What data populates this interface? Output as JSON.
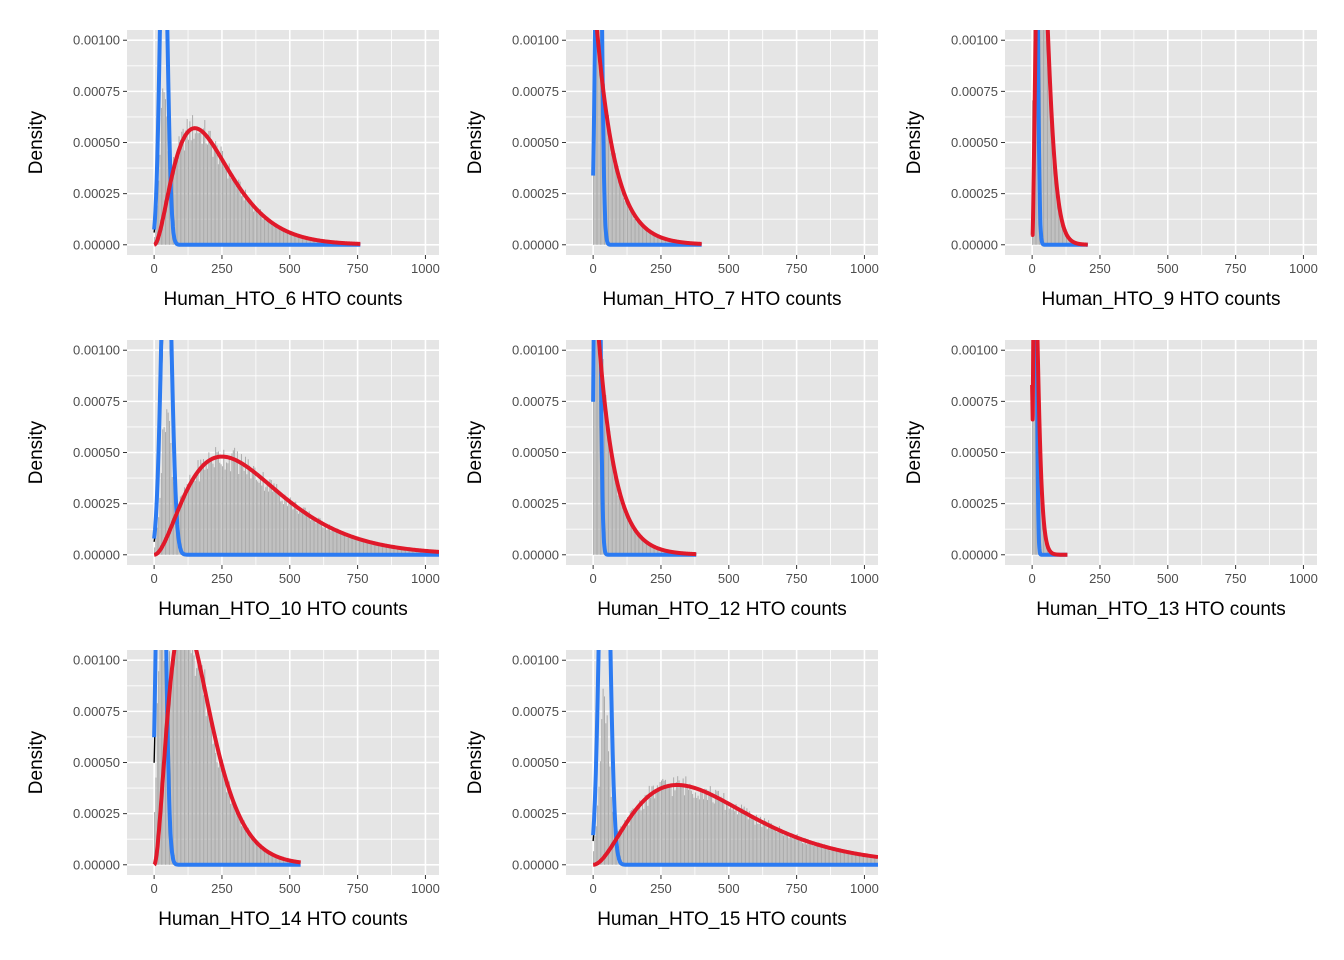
{
  "colors": {
    "panel_bg": "#e5e5e5",
    "grid": "#ffffff",
    "histogram": "#a9a9a9",
    "negative_fit": "#2c7bf2",
    "positive_fit": "#e0192a",
    "mixture_fit": "#000000",
    "tick_text": "#4d4d4d"
  },
  "chart_data": [
    {
      "type": "bar",
      "overlay": "line",
      "xlabel": "Human_HTO_6 HTO counts",
      "ylabel": "Density",
      "xlim": [
        -100,
        1050
      ],
      "ylim": [
        -5e-05,
        0.00105
      ],
      "xticks": [
        0,
        250,
        500,
        750,
        1000
      ],
      "xtick_labels": [
        "0",
        "250",
        "500",
        "750",
        "1000"
      ],
      "yticks": [
        0,
        0.00025,
        0.0005,
        0.00075,
        0.001
      ],
      "ytick_labels": [
        "0.00000",
        "0.00025",
        "0.00050",
        "0.00075",
        "0.00100"
      ],
      "data_max_x": 760,
      "negative": {
        "peak_x": 35,
        "peak_y": 0.0017,
        "width": 14
      },
      "positive": {
        "peak_x": 150,
        "peak_y": 0.00057,
        "shape": 3.0,
        "end_y": 2e-05
      }
    },
    {
      "type": "bar",
      "overlay": "line",
      "xlabel": "Human_HTO_7 HTO counts",
      "ylabel": "Density",
      "xlim": [
        -100,
        1050
      ],
      "ylim": [
        -5e-05,
        0.00105
      ],
      "xticks": [
        0,
        250,
        500,
        750,
        1000
      ],
      "xtick_labels": [
        "0",
        "250",
        "500",
        "750",
        "1000"
      ],
      "yticks": [
        0,
        0.00025,
        0.0005,
        0.00075,
        0.001
      ],
      "ytick_labels": [
        "0.00000",
        "0.00025",
        "0.00050",
        "0.00075",
        "0.00100"
      ],
      "data_max_x": 400,
      "negative": {
        "peak_x": 20,
        "peak_y": 0.0025,
        "width": 10
      },
      "positive": {
        "peak_x": 5,
        "peak_y": 0.0012,
        "decay": 70,
        "end_y": 1e-05
      }
    },
    {
      "type": "bar",
      "overlay": "line",
      "xlabel": "Human_HTO_9 HTO counts",
      "ylabel": "Density",
      "xlim": [
        -100,
        1050
      ],
      "ylim": [
        -5e-05,
        0.00105
      ],
      "xticks": [
        0,
        250,
        500,
        750,
        1000
      ],
      "xtick_labels": [
        "0",
        "250",
        "500",
        "750",
        "1000"
      ],
      "yticks": [
        0,
        0.00025,
        0.0005,
        0.00075,
        0.001
      ],
      "ytick_labels": [
        "0.00000",
        "0.00025",
        "0.00050",
        "0.00075",
        "0.00100"
      ],
      "data_max_x": 205,
      "negative": {
        "peak_x": 10,
        "peak_y": 0.003,
        "width": 8
      },
      "positive": {
        "peak_x": 30,
        "peak_y": 0.0018,
        "shape": 3.0,
        "start_y": 5e-05,
        "end_y": 3e-05
      }
    },
    {
      "type": "bar",
      "overlay": "line",
      "xlabel": "Human_HTO_10 HTO counts",
      "ylabel": "Density",
      "xlim": [
        -100,
        1050
      ],
      "ylim": [
        -5e-05,
        0.00105
      ],
      "xticks": [
        0,
        250,
        500,
        750,
        1000
      ],
      "xtick_labels": [
        "0",
        "250",
        "500",
        "750",
        "1000"
      ],
      "yticks": [
        0,
        0.00025,
        0.0005,
        0.00075,
        0.001
      ],
      "ytick_labels": [
        "0.00000",
        "0.00025",
        "0.00050",
        "0.00075",
        "0.00100"
      ],
      "data_max_x": 1050,
      "negative": {
        "peak_x": 45,
        "peak_y": 0.0018,
        "width": 18
      },
      "positive": {
        "peak_x": 250,
        "peak_y": 0.00048,
        "shape": 3.0,
        "end_y": 3e-05
      }
    },
    {
      "type": "bar",
      "overlay": "line",
      "xlabel": "Human_HTO_12 HTO counts",
      "ylabel": "Density",
      "xlim": [
        -100,
        1050
      ],
      "ylim": [
        -5e-05,
        0.00105
      ],
      "xticks": [
        0,
        250,
        500,
        750,
        1000
      ],
      "xtick_labels": [
        "0",
        "250",
        "500",
        "750",
        "1000"
      ],
      "yticks": [
        0,
        0.00025,
        0.0005,
        0.00075,
        0.001
      ],
      "ytick_labels": [
        "0.00000",
        "0.00025",
        "0.00050",
        "0.00075",
        "0.00100"
      ],
      "data_max_x": 380,
      "negative": {
        "peak_x": 15,
        "peak_y": 0.003,
        "width": 9
      },
      "positive": {
        "peak_x": 8,
        "peak_y": 0.0013,
        "decay": 62,
        "end_y": 1e-05
      }
    },
    {
      "type": "bar",
      "overlay": "line",
      "xlabel": "Human_HTO_13 HTO counts",
      "ylabel": "Density",
      "xlim": [
        -100,
        1050
      ],
      "ylim": [
        -5e-05,
        0.00105
      ],
      "xticks": [
        0,
        250,
        500,
        750,
        1000
      ],
      "xtick_labels": [
        "0",
        "250",
        "500",
        "750",
        "1000"
      ],
      "yticks": [
        0,
        0.00025,
        0.0005,
        0.00075,
        0.001
      ],
      "ytick_labels": [
        "0.00000",
        "0.00025",
        "0.00050",
        "0.00075",
        "0.00100"
      ],
      "data_max_x": 130,
      "negative": {
        "peak_x": 8,
        "peak_y": 0.004,
        "width": 6
      },
      "positive": {
        "peak_x": 10,
        "peak_y": 0.0015,
        "shape": 2.2,
        "start_y": 0.00083,
        "end_y": 2e-05
      }
    },
    {
      "type": "bar",
      "overlay": "line",
      "xlabel": "Human_HTO_14 HTO counts",
      "ylabel": "Density",
      "xlim": [
        -100,
        1050
      ],
      "ylim": [
        -5e-05,
        0.00105
      ],
      "xticks": [
        0,
        250,
        500,
        750,
        1000
      ],
      "xtick_labels": [
        "0",
        "250",
        "500",
        "750",
        "1000"
      ],
      "yticks": [
        0,
        0.00025,
        0.0005,
        0.00075,
        0.001
      ],
      "ytick_labels": [
        "0.00000",
        "0.00025",
        "0.00050",
        "0.00075",
        "0.00100"
      ],
      "data_max_x": 540,
      "negative": {
        "peak_x": 25,
        "peak_y": 0.0025,
        "width": 15
      },
      "positive": {
        "peak_x": 110,
        "peak_y": 0.0012,
        "shape": 3.0,
        "end_y": 4e-05
      }
    },
    {
      "type": "bar",
      "overlay": "line",
      "xlabel": "Human_HTO_15 HTO counts",
      "ylabel": "Density",
      "xlim": [
        -100,
        1050
      ],
      "ylim": [
        -5e-05,
        0.00105
      ],
      "xticks": [
        0,
        250,
        500,
        750,
        1000
      ],
      "xtick_labels": [
        "0",
        "250",
        "500",
        "750",
        "1000"
      ],
      "yticks": [
        0,
        0.00025,
        0.0005,
        0.00075,
        0.001
      ],
      "ytick_labels": [
        "0.00000",
        "0.00025",
        "0.00050",
        "0.00075",
        "0.00100"
      ],
      "data_max_x": 1050,
      "negative": {
        "peak_x": 42,
        "peak_y": 0.0022,
        "width": 18
      },
      "positive": {
        "peak_x": 310,
        "peak_y": 0.00039,
        "shape": 3.0,
        "end_y": 5e-05
      }
    }
  ]
}
